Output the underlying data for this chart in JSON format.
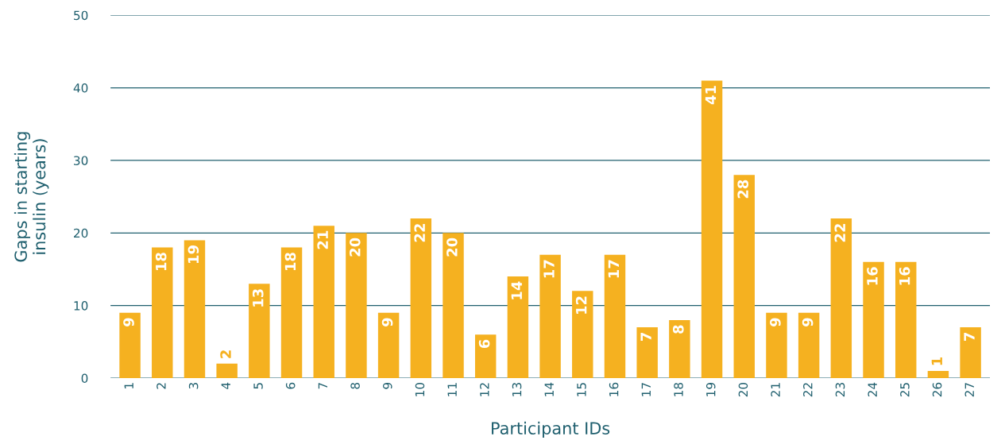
{
  "chart_data": {
    "type": "bar",
    "xlabel": "Participant IDs",
    "ylabel": "Gaps in starting\ninsulin (years)",
    "categories": [
      "1",
      "2",
      "3",
      "4",
      "5",
      "6",
      "7",
      "8",
      "9",
      "10",
      "11",
      "12",
      "13",
      "14",
      "15",
      "16",
      "17",
      "18",
      "19",
      "20",
      "21",
      "22",
      "23",
      "24",
      "25",
      "26",
      "27"
    ],
    "values": [
      9,
      18,
      19,
      2,
      13,
      18,
      21,
      20,
      9,
      22,
      20,
      6,
      14,
      17,
      12,
      17,
      7,
      8,
      41,
      28,
      9,
      9,
      22,
      16,
      16,
      1,
      7
    ],
    "color": "#f5b120",
    "ylim": [
      0,
      50
    ],
    "yticks": [
      0,
      10,
      20,
      30,
      40,
      50
    ],
    "grid": "y",
    "data_labels": true
  }
}
